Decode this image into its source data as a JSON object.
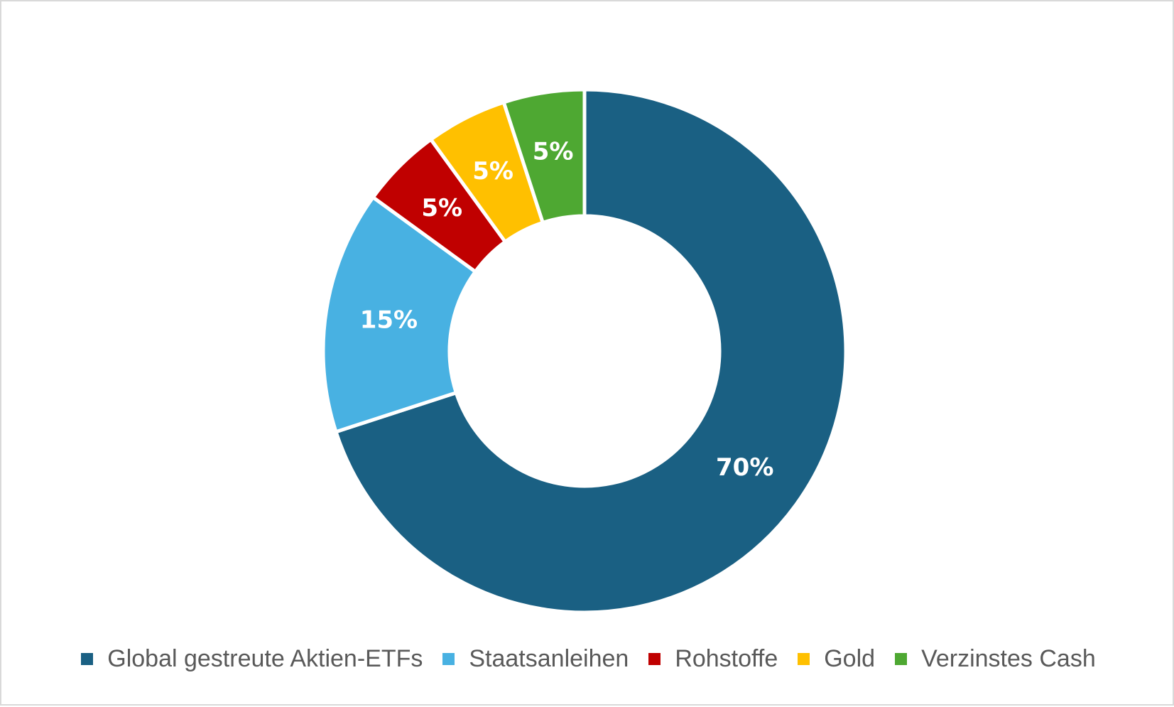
{
  "chart_data": {
    "type": "pie",
    "subtype": "donut",
    "categories": [
      "Global gestreute Aktien-ETFs",
      "Staatsanleihen",
      "Rohstoffe",
      "Gold",
      "Verzinstes Cash"
    ],
    "values": [
      70,
      15,
      5,
      5,
      5
    ],
    "data_labels": [
      "70%",
      "15%",
      "5%",
      "5%",
      "5%"
    ],
    "colors": [
      "#1a6083",
      "#48b1e2",
      "#c00000",
      "#ffc000",
      "#4ea832"
    ],
    "legend_position": "bottom"
  }
}
